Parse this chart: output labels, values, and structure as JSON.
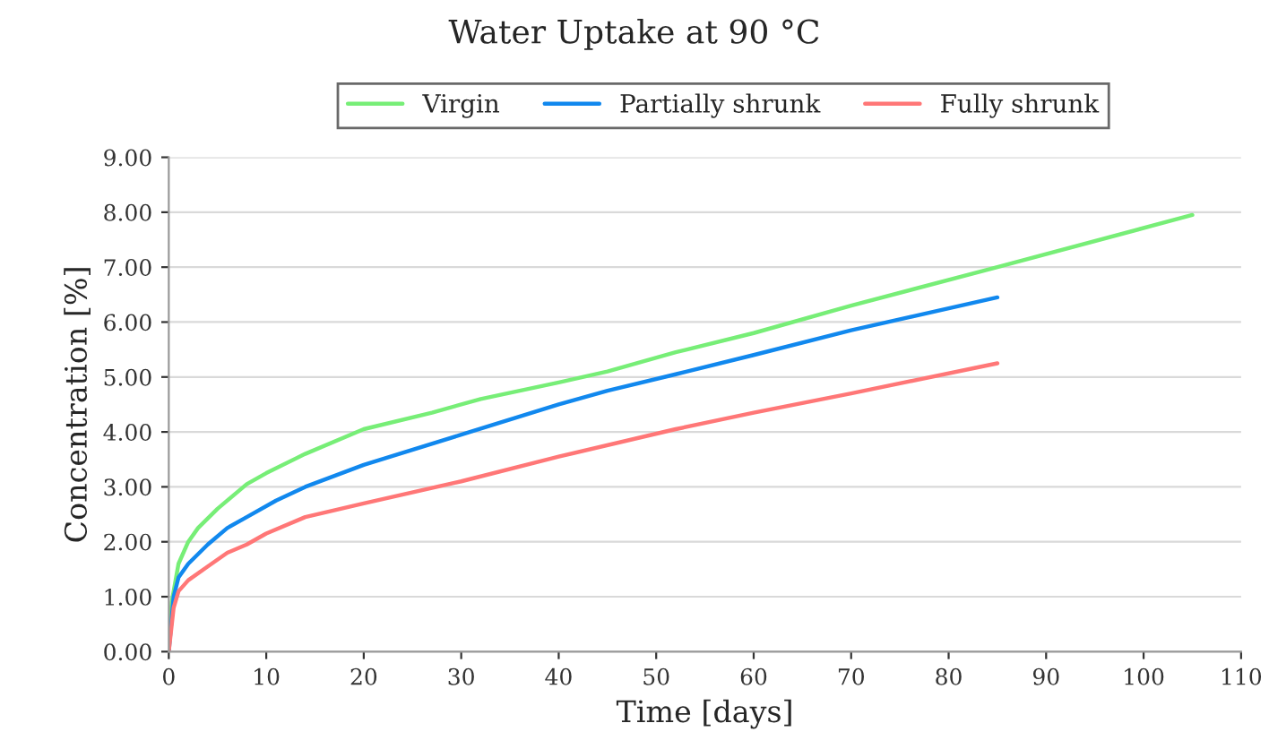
{
  "chart_data": {
    "type": "line",
    "title": "Water Uptake at 90 °C",
    "xlabel": "Time [days]",
    "ylabel": "Concentration [%]",
    "xlim": [
      0,
      110
    ],
    "xticks": [
      0,
      10,
      20,
      30,
      40,
      50,
      60,
      70,
      80,
      90,
      100,
      110
    ],
    "ylim": [
      0,
      9
    ],
    "yticks": [
      {
        "value": 0,
        "label": "0.00"
      },
      {
        "value": 1,
        "label": "1.00"
      },
      {
        "value": 2,
        "label": "2.00"
      },
      {
        "value": 3,
        "label": "3.00"
      },
      {
        "value": 4,
        "label": "4.00"
      },
      {
        "value": 5,
        "label": "5.00"
      },
      {
        "value": 6,
        "label": "6.00"
      },
      {
        "value": 7,
        "label": "7.00"
      },
      {
        "value": 8,
        "label": "8.00"
      },
      {
        "value": 9,
        "label": "9.00"
      }
    ],
    "grid": "y",
    "legend": "top",
    "marker": "none",
    "line_style": "solid",
    "series": [
      {
        "name": "Virgin",
        "color": "#77ee77",
        "x": [
          0,
          0.3,
          1,
          2,
          3,
          5,
          8,
          10,
          14,
          20,
          27,
          32,
          40,
          45,
          52,
          60,
          70,
          85,
          105
        ],
        "values": [
          0,
          0.9,
          1.6,
          2.0,
          2.25,
          2.6,
          3.05,
          3.25,
          3.6,
          4.05,
          4.35,
          4.6,
          4.9,
          5.1,
          5.45,
          5.8,
          6.3,
          7.0,
          7.95
        ]
      },
      {
        "name": "Partially shrunk",
        "color": "#1188ee",
        "x": [
          0,
          0.5,
          1,
          2,
          4,
          6,
          8,
          11,
          14,
          20,
          30,
          40,
          45,
          52,
          60,
          70,
          85
        ],
        "values": [
          0,
          1.0,
          1.35,
          1.6,
          1.95,
          2.25,
          2.45,
          2.75,
          3.0,
          3.4,
          3.95,
          4.5,
          4.75,
          5.05,
          5.4,
          5.85,
          6.45
        ]
      },
      {
        "name": "Fully shrunk",
        "color": "#ff7777",
        "x": [
          0,
          0.5,
          1,
          2,
          4,
          6,
          8,
          10,
          14,
          20,
          30,
          40,
          52,
          60,
          70,
          85
        ],
        "values": [
          0,
          0.8,
          1.1,
          1.3,
          1.55,
          1.8,
          1.95,
          2.15,
          2.45,
          2.7,
          3.1,
          3.55,
          4.05,
          4.35,
          4.7,
          5.25
        ]
      }
    ]
  }
}
